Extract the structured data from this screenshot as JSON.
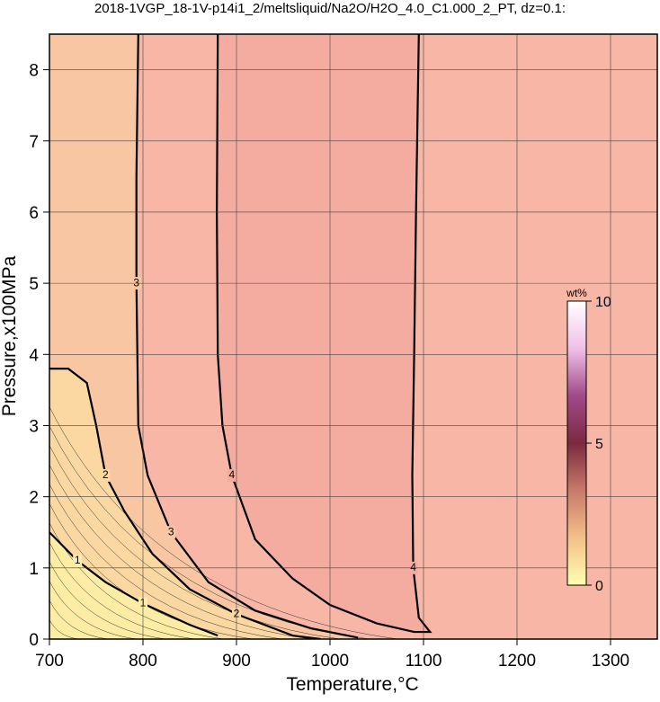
{
  "chart_data": {
    "type": "contour",
    "title": "2018-1VGP_18-1V-p14i1_2/meltsliquid/Na2O/H2O_4.0_C1.000_2_PT, dz=0.1:",
    "x_label": "Temperature,°C",
    "y_label": "Pressure,x100MPa",
    "xlim": [
      700,
      1350
    ],
    "ylim": [
      0,
      8.5
    ],
    "xticks": [
      700,
      800,
      900,
      1000,
      1100,
      1200,
      1300
    ],
    "yticks": [
      0,
      1,
      2,
      3,
      4,
      5,
      6,
      7,
      8
    ],
    "grid": true,
    "background": "#f7b6a6",
    "contours": [
      {
        "level": 4,
        "color": "#f4aba0",
        "x": [
          880,
          879,
          880,
          885,
          895,
          920,
          960,
          1000,
          1050,
          1090,
          1107,
          1095,
          1089,
          1088,
          1090,
          1092,
          1095
        ],
        "y": [
          8.5,
          6,
          4,
          3,
          2.3,
          1.4,
          0.85,
          0.48,
          0.22,
          0.1,
          0.1,
          0.3,
          1,
          2.3,
          4,
          6,
          8.5
        ]
      },
      {
        "level": 3,
        "color": "#f8c6a2",
        "x": [
          795,
          793,
          793,
          795,
          805,
          830,
          870,
          920,
          980,
          1030
        ],
        "y": [
          8.5,
          6.5,
          5,
          3,
          2.3,
          1.5,
          0.8,
          0.4,
          0.15,
          0.02
        ]
      },
      {
        "level": 2,
        "color": "#fbd8a2",
        "x": [
          700,
          720,
          740,
          750,
          760,
          780,
          810,
          850,
          900,
          960,
          990
        ],
        "y": [
          3.8,
          3.8,
          3.6,
          3.0,
          2.3,
          1.8,
          1.2,
          0.7,
          0.35,
          0.05,
          0
        ]
      },
      {
        "level": 1,
        "color": "#fdeda4",
        "x": [
          700,
          730,
          760,
          800,
          850,
          880
        ],
        "y": [
          1.5,
          1.1,
          0.8,
          0.5,
          0.2,
          0.05
        ]
      }
    ],
    "colorbar": {
      "title": "wt%",
      "lim": [
        0,
        10
      ],
      "ticks": [
        0,
        5,
        10
      ],
      "colors": [
        "#ffffb0",
        "#f3c08a",
        "#c87a6a",
        "#7a2a40",
        "#a04a8a",
        "#f0c0e8",
        "#ffffff"
      ]
    }
  }
}
